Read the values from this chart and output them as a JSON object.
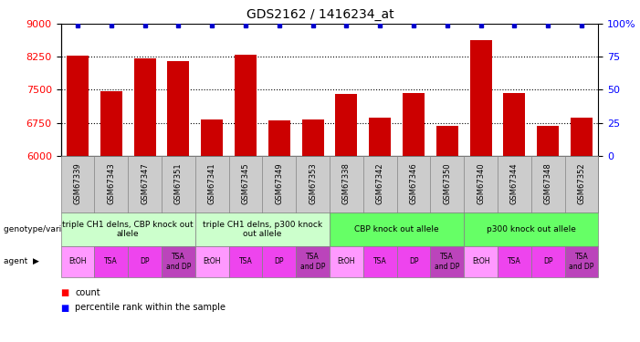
{
  "title": "GDS2162 / 1416234_at",
  "samples": [
    "GSM67339",
    "GSM67343",
    "GSM67347",
    "GSM67351",
    "GSM67341",
    "GSM67345",
    "GSM67349",
    "GSM67353",
    "GSM67338",
    "GSM67342",
    "GSM67346",
    "GSM67350",
    "GSM67340",
    "GSM67344",
    "GSM67348",
    "GSM67352"
  ],
  "counts": [
    8280,
    7460,
    8220,
    8160,
    6820,
    8300,
    6810,
    6820,
    7410,
    6870,
    7430,
    6670,
    8640,
    7430,
    6680,
    6860
  ],
  "percentiles": [
    99,
    99,
    99,
    99,
    99,
    99,
    99,
    99,
    99,
    99,
    99,
    99,
    99,
    99,
    99,
    99
  ],
  "bar_color": "#cc0000",
  "dot_color": "#0000cc",
  "ylim_left": [
    6000,
    9000
  ],
  "ylim_right": [
    0,
    100
  ],
  "yticks_left": [
    6000,
    6750,
    7500,
    8250,
    9000
  ],
  "yticks_right": [
    0,
    25,
    50,
    75,
    100
  ],
  "ytick_right_labels": [
    "0",
    "25",
    "50",
    "75",
    "100%"
  ],
  "grid_values": [
    6750,
    7500,
    8250
  ],
  "genotype_groups": [
    {
      "label": "triple CH1 delns, CBP knock out\nallele",
      "start": 0,
      "end": 4,
      "color": "#ccffcc"
    },
    {
      "label": "triple CH1 delns, p300 knock\nout allele",
      "start": 4,
      "end": 8,
      "color": "#ccffcc"
    },
    {
      "label": "CBP knock out allele",
      "start": 8,
      "end": 12,
      "color": "#66ff66"
    },
    {
      "label": "p300 knock out allele",
      "start": 12,
      "end": 16,
      "color": "#66ff66"
    }
  ],
  "agent_labels": [
    "EtOH",
    "TSA",
    "DP",
    "TSA\nand DP",
    "EtOH",
    "TSA",
    "DP",
    "TSA\nand DP",
    "EtOH",
    "TSA",
    "DP",
    "TSA\nand DP",
    "EtOH",
    "TSA",
    "DP",
    "TSA\nand DP"
  ],
  "agent_colors": [
    "#ff99ff",
    "#ee44ee",
    "#ee44ee",
    "#bb44bb",
    "#ff99ff",
    "#ee44ee",
    "#ee44ee",
    "#bb44bb",
    "#ff99ff",
    "#ee44ee",
    "#ee44ee",
    "#bb44bb",
    "#ff99ff",
    "#ee44ee",
    "#ee44ee",
    "#bb44bb"
  ],
  "sample_bg_color": "#cccccc",
  "bg_color": "#ffffff"
}
